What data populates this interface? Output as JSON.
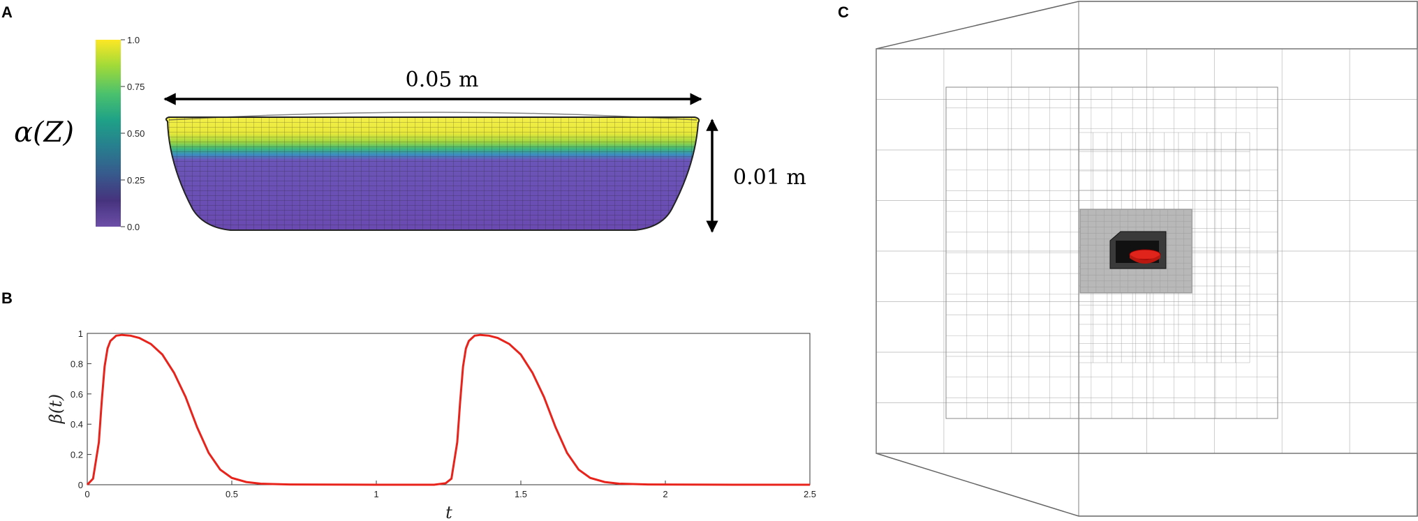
{
  "panels": {
    "a": {
      "label": "A"
    },
    "b": {
      "label": "B"
    },
    "c": {
      "label": "C"
    }
  },
  "panel_a": {
    "colorbar_label": "α(Z)",
    "colorbar_ticks": [
      "1.0",
      "0.75",
      "0.50",
      "0.25",
      "0.0"
    ],
    "colorbar_colors": [
      "#fde725",
      "#a0da39",
      "#4ac16d",
      "#1fa187",
      "#277f8e",
      "#365c8d",
      "#46337e",
      "#6c4ea8"
    ],
    "width_annotation": "0.05 m",
    "height_annotation": "0.01 m"
  },
  "panel_c": {
    "mesh_color": "#9a9a9a",
    "object_color": "#e0231b"
  },
  "chart_data": {
    "type": "line",
    "title": "",
    "xlabel": "t",
    "ylabel": "β(t)",
    "xlim": [
      0,
      2.5
    ],
    "ylim": [
      0,
      1
    ],
    "xticks": [
      "0",
      "0.5",
      "1",
      "1.5",
      "2",
      "2.5"
    ],
    "yticks": [
      "0",
      "0.2",
      "0.4",
      "0.6",
      "0.8",
      "1"
    ],
    "grid": false,
    "line_color": "#e8231c",
    "series": [
      {
        "x": [
          0,
          0.02,
          0.04,
          0.05,
          0.06,
          0.07,
          0.08,
          0.1,
          0.12,
          0.15,
          0.18,
          0.22,
          0.26,
          0.3,
          0.34,
          0.38,
          0.42,
          0.46,
          0.5,
          0.55,
          0.6,
          0.7,
          0.8,
          1.0,
          1.2,
          1.24,
          1.26,
          1.28,
          1.29,
          1.3,
          1.31,
          1.32,
          1.34,
          1.36,
          1.39,
          1.42,
          1.46,
          1.5,
          1.54,
          1.58,
          1.62,
          1.66,
          1.7,
          1.74,
          1.79,
          1.84,
          1.94,
          2.04,
          2.24,
          2.5
        ],
        "values": [
          0,
          0.04,
          0.28,
          0.55,
          0.78,
          0.9,
          0.95,
          0.985,
          0.99,
          0.985,
          0.97,
          0.93,
          0.86,
          0.74,
          0.58,
          0.38,
          0.21,
          0.1,
          0.045,
          0.018,
          0.007,
          0.002,
          0.001,
          0,
          0,
          0.01,
          0.04,
          0.28,
          0.55,
          0.78,
          0.9,
          0.95,
          0.985,
          0.99,
          0.985,
          0.97,
          0.93,
          0.86,
          0.74,
          0.58,
          0.38,
          0.21,
          0.1,
          0.045,
          0.018,
          0.007,
          0.002,
          0.001,
          0,
          0
        ]
      }
    ]
  }
}
